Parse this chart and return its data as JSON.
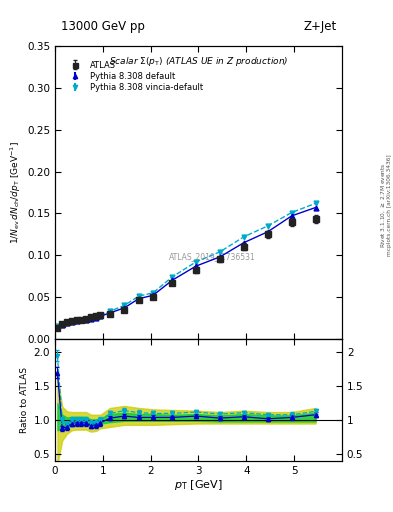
{
  "title_top": "13000 GeV pp",
  "title_right": "Z+Jet",
  "plot_title": "Scalar $\\Sigma(p_\\mathrm{T})$ (ATLAS UE in Z production)",
  "watermark": "ATLAS_2019_I1736531",
  "ylabel_main": "$1/N_\\mathrm{ev}\\,dN_\\mathrm{ch}/dp_\\mathrm{T}$ [GeV$^{-1}$]",
  "ylabel_ratio": "Ratio to ATLAS",
  "xlabel": "$p_\\mathrm{T}$ [GeV]",
  "right_label_top": "Rivet 3.1.10, $\\geq$ 2.7M events",
  "right_label_bot": "mcplots.cern.ch [arXiv:1306.3436]",
  "atlas_x": [
    0.05,
    0.15,
    0.25,
    0.35,
    0.45,
    0.55,
    0.65,
    0.75,
    0.85,
    0.95,
    1.15,
    1.45,
    1.75,
    2.05,
    2.45,
    2.95,
    3.45,
    3.95,
    4.45,
    4.95,
    5.45
  ],
  "atlas_y": [
    0.013,
    0.018,
    0.02,
    0.021,
    0.022,
    0.023,
    0.024,
    0.026,
    0.027,
    0.028,
    0.03,
    0.035,
    0.046,
    0.05,
    0.067,
    0.082,
    0.095,
    0.11,
    0.125,
    0.14,
    0.143
  ],
  "atlas_yerr": [
    0.001,
    0.001,
    0.001,
    0.001,
    0.001,
    0.001,
    0.001,
    0.001,
    0.001,
    0.001,
    0.001,
    0.001,
    0.002,
    0.002,
    0.002,
    0.003,
    0.003,
    0.004,
    0.004,
    0.005,
    0.005
  ],
  "py_def_x": [
    0.05,
    0.15,
    0.25,
    0.35,
    0.45,
    0.55,
    0.65,
    0.75,
    0.85,
    0.95,
    1.15,
    1.45,
    1.75,
    2.05,
    2.45,
    2.95,
    3.45,
    3.95,
    4.45,
    4.95,
    5.45
  ],
  "py_def_y": [
    0.0135,
    0.0165,
    0.0185,
    0.02,
    0.021,
    0.022,
    0.023,
    0.024,
    0.025,
    0.027,
    0.031,
    0.037,
    0.048,
    0.052,
    0.07,
    0.087,
    0.098,
    0.115,
    0.128,
    0.147,
    0.157
  ],
  "py_def_yerr": [
    0.0003,
    0.0003,
    0.0003,
    0.0003,
    0.0003,
    0.0003,
    0.0003,
    0.0003,
    0.0003,
    0.0003,
    0.0004,
    0.0004,
    0.0005,
    0.0005,
    0.0006,
    0.0007,
    0.0008,
    0.0009,
    0.001,
    0.001,
    0.001
  ],
  "py_vinc_x": [
    0.05,
    0.15,
    0.25,
    0.35,
    0.45,
    0.55,
    0.65,
    0.75,
    0.85,
    0.95,
    1.15,
    1.45,
    1.75,
    2.05,
    2.45,
    2.95,
    3.45,
    3.95,
    4.45,
    4.95,
    5.45
  ],
  "py_vinc_y": [
    0.015,
    0.018,
    0.019,
    0.021,
    0.022,
    0.023,
    0.024,
    0.025,
    0.026,
    0.028,
    0.033,
    0.04,
    0.051,
    0.055,
    0.074,
    0.092,
    0.104,
    0.122,
    0.135,
    0.151,
    0.162
  ],
  "py_vinc_yerr": [
    0.0003,
    0.0003,
    0.0003,
    0.0003,
    0.0003,
    0.0003,
    0.0003,
    0.0003,
    0.0003,
    0.0003,
    0.0004,
    0.0004,
    0.0005,
    0.0005,
    0.0006,
    0.0007,
    0.0008,
    0.0009,
    0.001,
    0.001,
    0.001
  ],
  "ratio_def_y": [
    1.7,
    0.88,
    0.9,
    0.95,
    0.96,
    0.96,
    0.96,
    0.92,
    0.93,
    0.96,
    1.03,
    1.06,
    1.04,
    1.04,
    1.04,
    1.06,
    1.03,
    1.05,
    1.02,
    1.04,
    1.08
  ],
  "ratio_def_yerr": [
    0.08,
    0.04,
    0.04,
    0.04,
    0.04,
    0.04,
    0.04,
    0.04,
    0.04,
    0.04,
    0.03,
    0.03,
    0.03,
    0.03,
    0.02,
    0.03,
    0.03,
    0.03,
    0.03,
    0.04,
    0.04
  ],
  "ratio_vinc_y": [
    1.95,
    1.0,
    0.95,
    1.0,
    1.0,
    1.0,
    1.0,
    0.96,
    0.96,
    1.0,
    1.1,
    1.14,
    1.11,
    1.1,
    1.1,
    1.12,
    1.09,
    1.11,
    1.08,
    1.08,
    1.13
  ],
  "ratio_vinc_yerr": [
    0.08,
    0.04,
    0.04,
    0.04,
    0.04,
    0.04,
    0.04,
    0.04,
    0.04,
    0.04,
    0.04,
    0.04,
    0.04,
    0.04,
    0.03,
    0.03,
    0.03,
    0.03,
    0.03,
    0.04,
    0.04
  ],
  "band_green_low": [
    0.85,
    0.88,
    0.9,
    0.92,
    0.93,
    0.93,
    0.93,
    0.92,
    0.93,
    0.95,
    0.97,
    0.99,
    0.99,
    0.99,
    0.99,
    0.99,
    0.98,
    0.98,
    0.98,
    0.98,
    0.98
  ],
  "band_green_high": [
    1.25,
    1.08,
    1.04,
    1.05,
    1.05,
    1.05,
    1.05,
    1.01,
    1.01,
    1.03,
    1.09,
    1.11,
    1.09,
    1.09,
    1.08,
    1.09,
    1.07,
    1.09,
    1.07,
    1.07,
    1.11
  ],
  "band_yellow_low": [
    0.35,
    0.7,
    0.8,
    0.85,
    0.86,
    0.86,
    0.86,
    0.83,
    0.84,
    0.88,
    0.9,
    0.93,
    0.93,
    0.93,
    0.94,
    0.95,
    0.95,
    0.95,
    0.95,
    0.95,
    0.95
  ],
  "band_yellow_high": [
    1.65,
    1.2,
    1.13,
    1.12,
    1.12,
    1.12,
    1.12,
    1.08,
    1.08,
    1.08,
    1.18,
    1.21,
    1.18,
    1.16,
    1.15,
    1.14,
    1.12,
    1.14,
    1.12,
    1.12,
    1.18
  ],
  "xlim": [
    0,
    6
  ],
  "ylim_main": [
    0,
    0.35
  ],
  "ylim_ratio": [
    0.4,
    2.2
  ],
  "yticks_main": [
    0,
    0.05,
    0.1,
    0.15,
    0.2,
    0.25,
    0.3,
    0.35
  ],
  "yticks_ratio": [
    0.5,
    1.0,
    1.5,
    2.0
  ],
  "xticks": [
    0,
    1,
    2,
    3,
    4,
    5
  ],
  "color_atlas": "#222222",
  "color_py_def": "#0000cc",
  "color_py_vinc": "#00aacc",
  "color_green_band": "#00cc44",
  "color_yellow_band": "#cccc00",
  "legend_labels": [
    "ATLAS",
    "Pythia 8.308 default",
    "Pythia 8.308 vincia-default"
  ]
}
